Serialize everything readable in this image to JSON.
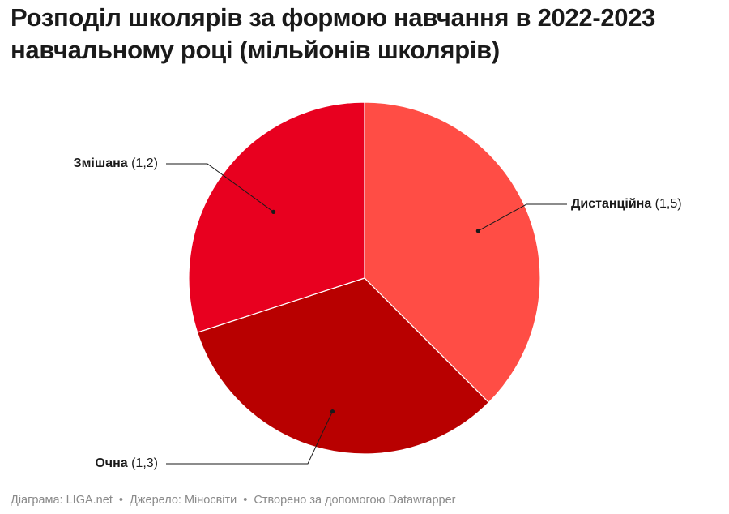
{
  "title": "Розподіл школярів за формою навчання в 2022-2023 навчальному році (мільйонів школярів)",
  "chart_data": {
    "type": "pie",
    "title": "Розподіл школярів за формою навчання в 2022-2023 навчальному році (мільйонів школярів)",
    "slices": [
      {
        "label": "Дистанційна",
        "value": 1.5,
        "value_label": "(1,5)",
        "color": "#ff4d45"
      },
      {
        "label": "Очна",
        "value": 1.3,
        "value_label": "(1,3)",
        "color": "#b80000"
      },
      {
        "label": "Змішана",
        "value": 1.2,
        "value_label": "(1,2)",
        "color": "#e8001f"
      }
    ],
    "start": "12 o'clock",
    "direction": "clockwise"
  },
  "footer": {
    "chart_credit": "Діаграма: LIGA.net",
    "source": "Джерело: Міносвіти",
    "tool": "Створено за допомогою Datawrapper",
    "separator": "•"
  }
}
